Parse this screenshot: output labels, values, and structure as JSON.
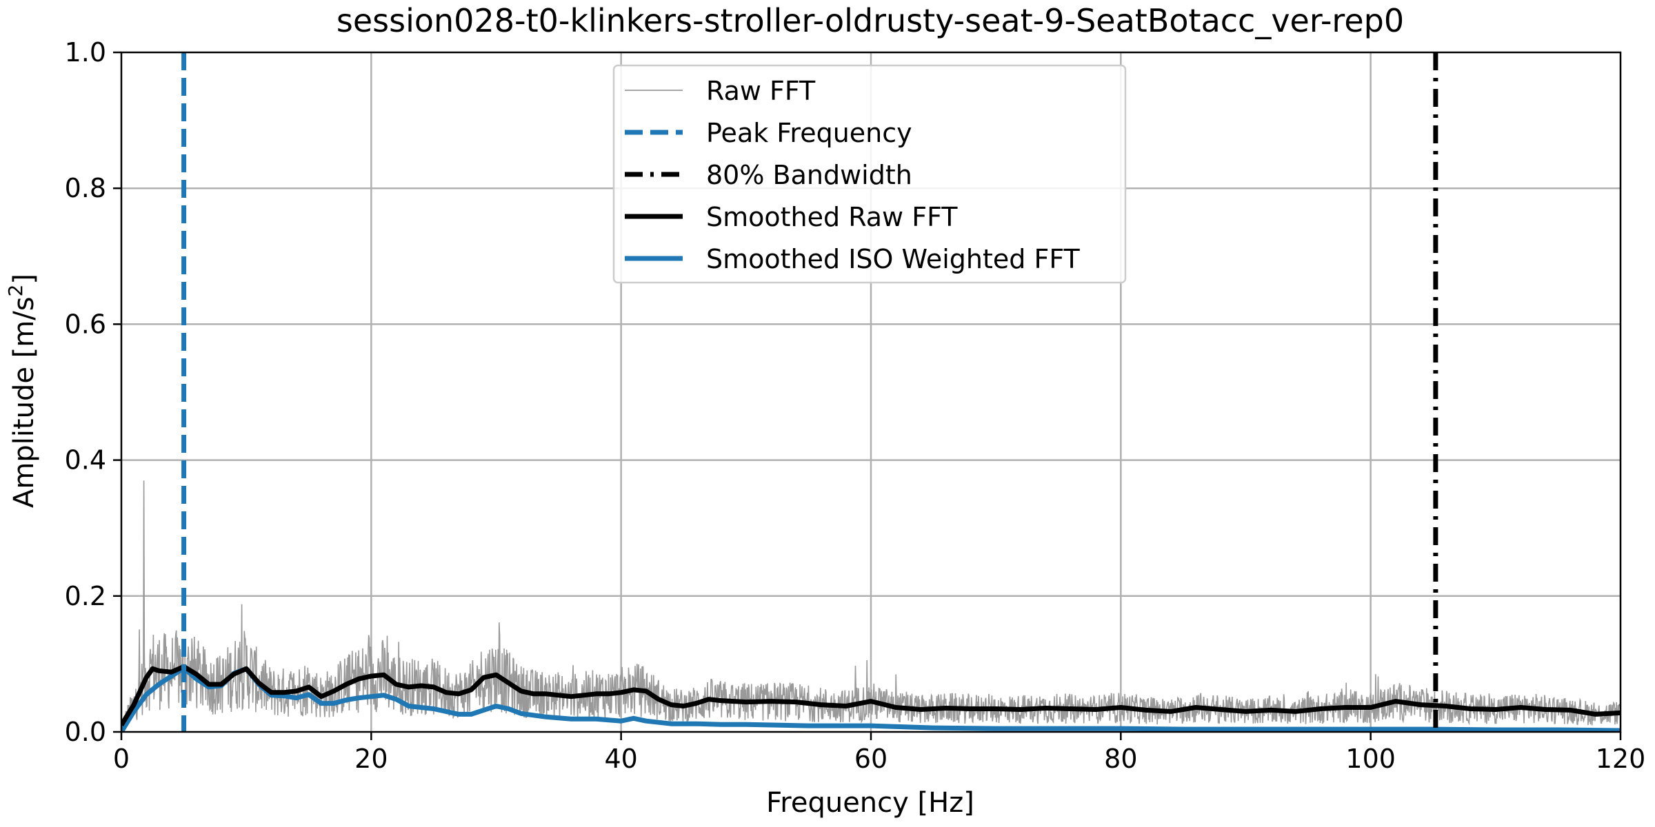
{
  "chart_data": {
    "type": "line",
    "title": "session028-t0-klinkers-stroller-oldrusty-seat-9-SeatBotacc_ver-rep0",
    "xlabel": "Frequency [Hz]",
    "ylabel": "Amplitude [m/s",
    "ylabel_sup": "2",
    "ylabel_end": "]",
    "xlim": [
      0,
      120
    ],
    "ylim": [
      0,
      1.0
    ],
    "x_ticks": [
      0,
      20,
      40,
      60,
      80,
      100,
      120
    ],
    "y_ticks": [
      0.0,
      0.2,
      0.4,
      0.6,
      0.8,
      1.0
    ],
    "x_tick_labels": [
      "0",
      "20",
      "40",
      "60",
      "80",
      "100",
      "120"
    ],
    "y_tick_labels": [
      "0.0",
      "0.2",
      "0.4",
      "0.6",
      "0.8",
      "1.0"
    ],
    "grid": true,
    "legend_position": "top-center",
    "peak_frequency": 5.0,
    "bandwidth_80": 105.2,
    "raw_fft_notes": {
      "spike_freq": 1.8,
      "spike_value": 0.37
    },
    "series": [
      {
        "name": "Raw FFT",
        "color": "#999999",
        "style": "thin",
        "x": [
          0,
          1,
          1.8,
          2.5,
          3,
          4,
          5,
          6,
          7,
          8,
          9,
          10,
          11,
          12,
          14,
          16,
          18,
          20,
          22,
          24,
          26,
          28,
          30,
          32,
          34,
          36,
          38,
          40,
          42,
          44,
          46,
          48,
          50,
          55,
          60,
          65,
          70,
          75,
          80,
          85,
          90,
          95,
          100,
          105,
          110,
          115,
          120
        ],
        "y": [
          0.0,
          0.05,
          0.37,
          0.12,
          0.19,
          0.1,
          0.17,
          0.12,
          0.1,
          0.12,
          0.2,
          0.21,
          0.12,
          0.08,
          0.1,
          0.07,
          0.12,
          0.15,
          0.2,
          0.1,
          0.08,
          0.07,
          0.2,
          0.1,
          0.08,
          0.15,
          0.07,
          0.1,
          0.08,
          0.06,
          0.05,
          0.06,
          0.05,
          0.05,
          0.12,
          0.04,
          0.04,
          0.05,
          0.05,
          0.05,
          0.05,
          0.06,
          0.09,
          0.06,
          0.06,
          0.05,
          0.04
        ]
      },
      {
        "name": "Peak Frequency",
        "color": "#1f77b4",
        "style": "dashed"
      },
      {
        "name": "80% Bandwidth",
        "color": "#000000",
        "style": "dashdot"
      },
      {
        "name": "Smoothed Raw FFT",
        "color": "#000000",
        "style": "thick",
        "x": [
          0,
          1,
          2,
          2.5,
          3,
          4,
          5,
          6,
          7,
          8,
          9,
          10,
          11,
          12,
          13,
          14,
          15,
          16,
          17,
          18,
          19,
          20,
          21,
          22,
          23,
          24,
          25,
          26,
          27,
          28,
          29,
          30,
          31,
          32,
          33,
          34,
          35,
          36,
          37,
          38,
          39,
          40,
          41,
          42,
          43,
          44,
          45,
          46,
          47,
          48,
          50,
          52,
          54,
          56,
          58,
          60,
          62,
          64,
          66,
          68,
          70,
          72,
          74,
          76,
          78,
          80,
          82,
          84,
          86,
          88,
          90,
          92,
          94,
          96,
          98,
          100,
          102,
          104,
          106,
          108,
          110,
          112,
          114,
          116,
          118,
          120
        ],
        "y": [
          0.01,
          0.04,
          0.08,
          0.093,
          0.09,
          0.088,
          0.096,
          0.085,
          0.07,
          0.07,
          0.085,
          0.093,
          0.072,
          0.058,
          0.058,
          0.06,
          0.066,
          0.052,
          0.06,
          0.07,
          0.078,
          0.082,
          0.084,
          0.07,
          0.066,
          0.068,
          0.066,
          0.058,
          0.056,
          0.062,
          0.08,
          0.084,
          0.072,
          0.06,
          0.056,
          0.056,
          0.054,
          0.052,
          0.054,
          0.056,
          0.056,
          0.058,
          0.062,
          0.06,
          0.048,
          0.04,
          0.038,
          0.042,
          0.048,
          0.046,
          0.044,
          0.045,
          0.044,
          0.04,
          0.038,
          0.045,
          0.036,
          0.033,
          0.035,
          0.034,
          0.034,
          0.033,
          0.035,
          0.034,
          0.033,
          0.036,
          0.032,
          0.03,
          0.036,
          0.033,
          0.03,
          0.032,
          0.03,
          0.034,
          0.036,
          0.036,
          0.045,
          0.04,
          0.038,
          0.034,
          0.033,
          0.036,
          0.033,
          0.032,
          0.026,
          0.028
        ]
      },
      {
        "name": "Smoothed ISO Weighted FFT",
        "color": "#1f77b4",
        "style": "thick",
        "x": [
          0,
          1,
          2,
          3,
          4,
          5,
          6,
          7,
          8,
          9,
          10,
          11,
          12,
          13,
          14,
          15,
          16,
          17,
          18,
          19,
          20,
          21,
          22,
          23,
          24,
          25,
          26,
          27,
          28,
          29,
          30,
          31,
          32,
          34,
          36,
          38,
          40,
          41,
          42,
          44,
          46,
          48,
          50,
          55,
          60,
          65,
          70,
          75,
          80,
          85,
          90,
          95,
          100,
          105,
          110,
          115,
          120
        ],
        "y": [
          0.0,
          0.03,
          0.055,
          0.07,
          0.082,
          0.094,
          0.078,
          0.066,
          0.068,
          0.086,
          0.093,
          0.07,
          0.054,
          0.053,
          0.05,
          0.055,
          0.042,
          0.042,
          0.047,
          0.05,
          0.052,
          0.054,
          0.048,
          0.038,
          0.036,
          0.034,
          0.03,
          0.026,
          0.026,
          0.032,
          0.038,
          0.034,
          0.027,
          0.022,
          0.019,
          0.019,
          0.016,
          0.02,
          0.016,
          0.012,
          0.012,
          0.011,
          0.011,
          0.009,
          0.009,
          0.006,
          0.005,
          0.005,
          0.005,
          0.004,
          0.004,
          0.004,
          0.004,
          0.004,
          0.003,
          0.003,
          0.002
        ]
      }
    ]
  }
}
